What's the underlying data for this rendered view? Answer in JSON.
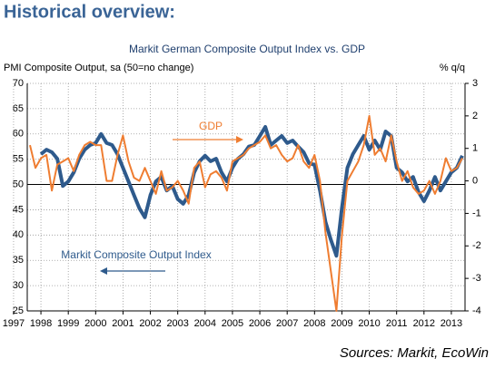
{
  "header": {
    "title": "Historical overview:"
  },
  "chart_data": {
    "type": "line",
    "title": "Markit German Composite Output Index vs. GDP",
    "y_label": "PMI Composite Output, sa (50=no change)",
    "y2_label": "% q/q",
    "source": "Sources: Markit, EcoWin",
    "annotations": [
      "GDP",
      "Markit Composite Output Index"
    ],
    "x": [
      1997.6,
      1997.8,
      1998.0,
      1998.2,
      1998.4,
      1998.6,
      1998.8,
      1999.0,
      1999.2,
      1999.4,
      1999.6,
      1999.8,
      2000.0,
      2000.2,
      2000.4,
      2000.6,
      2000.8,
      2001.0,
      2001.2,
      2001.4,
      2001.6,
      2001.8,
      2002.0,
      2002.2,
      2002.4,
      2002.6,
      2002.8,
      2003.0,
      2003.2,
      2003.4,
      2003.6,
      2003.8,
      2004.0,
      2004.2,
      2004.4,
      2004.6,
      2004.8,
      2005.0,
      2005.2,
      2005.4,
      2005.6,
      2005.8,
      2006.0,
      2006.2,
      2006.4,
      2006.6,
      2006.8,
      2007.0,
      2007.2,
      2007.4,
      2007.6,
      2007.8,
      2008.0,
      2008.2,
      2008.4,
      2008.6,
      2008.8,
      2009.0,
      2009.2,
      2009.4,
      2009.6,
      2009.8,
      2010.0,
      2010.2,
      2010.4,
      2010.6,
      2010.8,
      2011.0,
      2011.2,
      2011.4,
      2011.6,
      2011.8,
      2012.0,
      2012.2,
      2012.4,
      2012.6,
      2012.8,
      2013.0,
      2013.2,
      2013.4
    ],
    "xlim": [
      1997.5,
      2013.5
    ],
    "xticks": [
      1997,
      1998,
      1999,
      2000,
      2001,
      2002,
      2003,
      2004,
      2005,
      2006,
      2007,
      2008,
      2009,
      2010,
      2011,
      2012,
      2013
    ],
    "ylim": [
      25,
      70
    ],
    "yticks": [
      25,
      30,
      35,
      40,
      45,
      50,
      55,
      60,
      65,
      70
    ],
    "y2lim": [
      -4,
      3
    ],
    "y2ticks": [
      -4,
      -3,
      -2,
      -1,
      0,
      1,
      2,
      3
    ],
    "hline": 50,
    "grid": true,
    "series": [
      {
        "name": "Markit Composite Output Index",
        "color": "#2e5a8c",
        "values": [
          null,
          null,
          56.0,
          56.9,
          56.4,
          55.1,
          49.7,
          50.6,
          52.4,
          55.1,
          56.9,
          57.8,
          58.2,
          60.0,
          58.2,
          57.8,
          56.0,
          53.3,
          50.6,
          47.9,
          45.3,
          43.5,
          47.9,
          50.6,
          51.5,
          48.8,
          49.7,
          47.1,
          46.2,
          47.9,
          52.4,
          54.6,
          55.7,
          54.6,
          55.1,
          52.4,
          50.6,
          53.3,
          55.1,
          56.0,
          57.5,
          57.8,
          59.6,
          61.4,
          57.8,
          58.7,
          59.6,
          58.2,
          58.7,
          57.5,
          56.4,
          54.2,
          53.9,
          48.8,
          42.6,
          39.0,
          35.9,
          45.3,
          53.3,
          56.0,
          57.8,
          59.6,
          56.9,
          58.7,
          56.9,
          60.5,
          59.6,
          53.3,
          52.4,
          50.6,
          51.5,
          48.5,
          46.7,
          48.8,
          51.5,
          48.8,
          50.6,
          52.4,
          53.3,
          55.7
        ]
      },
      {
        "name": "GDP",
        "color": "#ef7d31",
        "axis": "y2",
        "values": [
          1.1,
          0.4,
          0.7,
          0.8,
          -0.3,
          0.5,
          0.6,
          0.7,
          0.3,
          0.8,
          1.1,
          1.2,
          1.1,
          1.1,
          0.0,
          0.0,
          0.8,
          1.4,
          0.6,
          0.1,
          0.0,
          0.4,
          0.0,
          -0.4,
          0.3,
          -0.3,
          -0.2,
          0.0,
          -0.3,
          -0.7,
          0.4,
          0.6,
          -0.2,
          0.2,
          0.3,
          0.1,
          -0.3,
          0.6,
          0.7,
          0.8,
          1.0,
          1.1,
          1.2,
          1.4,
          1.0,
          1.1,
          0.8,
          0.6,
          0.7,
          1.1,
          0.6,
          0.4,
          0.8,
          0.0,
          -1.6,
          -2.8,
          -4.0,
          -1.7,
          0.0,
          0.3,
          0.6,
          1.1,
          2.0,
          0.8,
          1.0,
          0.6,
          1.4,
          0.6,
          0.0,
          0.3,
          -0.2,
          -0.4,
          -0.3,
          0.0,
          -0.4,
          0.0,
          0.7,
          0.3,
          0.4,
          0.7
        ]
      }
    ]
  }
}
